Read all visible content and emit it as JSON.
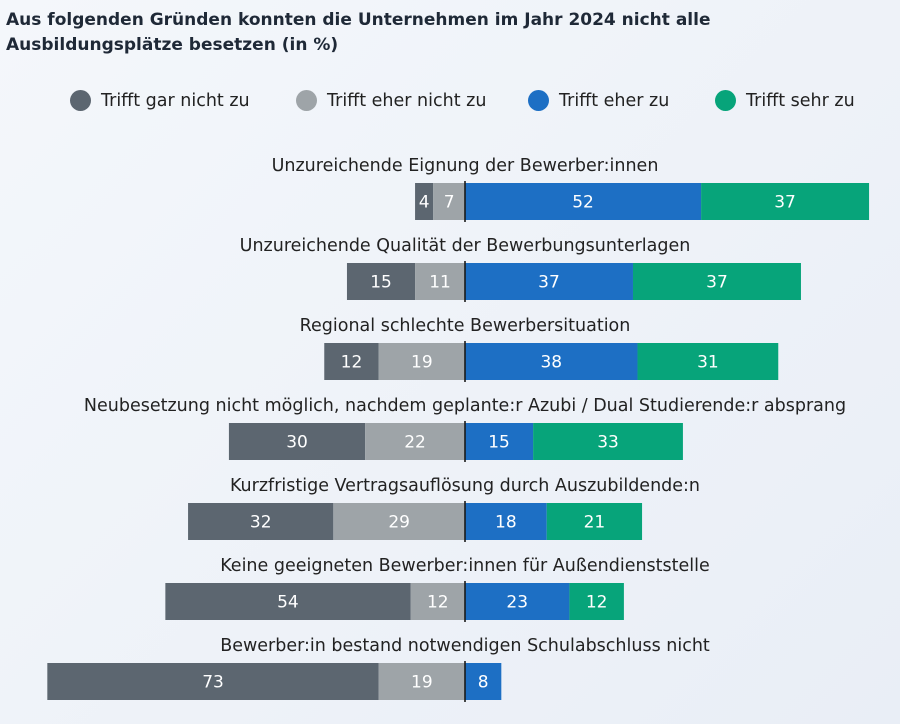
{
  "chart_data": {
    "type": "bar",
    "stacked": "diverging",
    "title": "Aus folgenden Gründen konnten die Unternehmen im Jahr 2024 nicht alle Ausbildungsplätze besetzen (in %)",
    "legend_position": "top",
    "series": [
      {
        "name": "Trifft gar nicht zu",
        "color": "#5c6670",
        "side": "negative"
      },
      {
        "name": "Trifft eher nicht zu",
        "color": "#9ea4a8",
        "side": "negative"
      },
      {
        "name": "Trifft eher zu",
        "color": "#1d6fc4",
        "side": "positive"
      },
      {
        "name": "Trifft sehr zu",
        "color": "#07a47a",
        "side": "positive"
      }
    ],
    "categories": [
      {
        "label": "Unzureichende Eignung der Bewerber:innen",
        "values": [
          4,
          7,
          52,
          37
        ]
      },
      {
        "label": "Unzureichende Qualität der Bewerbungsunterlagen",
        "values": [
          15,
          11,
          37,
          37
        ]
      },
      {
        "label": "Regional schlechte Bewerbersituation",
        "values": [
          12,
          19,
          38,
          31
        ]
      },
      {
        "label": "Neubesetzung nicht möglich, nachdem geplante:r Azubi / Dual Studierende:r absprang",
        "values": [
          30,
          22,
          15,
          33
        ]
      },
      {
        "label": "Kurzfristige Vertragsauflösung durch Auszubildende:n",
        "values": [
          32,
          29,
          18,
          21
        ]
      },
      {
        "label": "Keine geeigneten Bewerber:innen für Außendienststelle",
        "values": [
          54,
          12,
          23,
          12
        ]
      },
      {
        "label": "Bewerber:in bestand notwendigen Schulabschluss nicht",
        "values": [
          73,
          19,
          8,
          null
        ]
      }
    ]
  }
}
